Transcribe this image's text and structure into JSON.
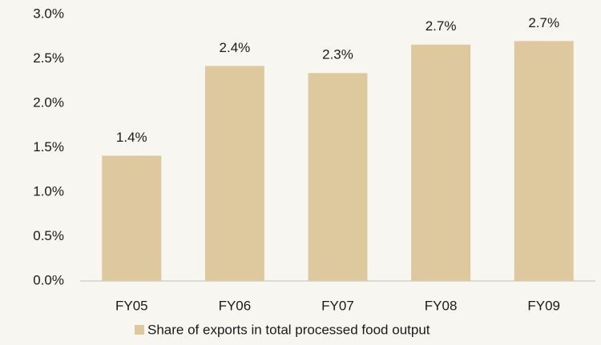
{
  "chart_data": {
    "type": "bar",
    "categories": [
      "FY05",
      "FY06",
      "FY07",
      "FY08",
      "FY09"
    ],
    "series": [
      {
        "name": "Share of exports in total processed food output",
        "color": "#dec99e",
        "values": [
          1.41,
          2.42,
          2.34,
          2.66,
          2.7
        ],
        "value_labels": [
          "1.4%",
          "2.4%",
          "2.3%",
          "2.7%",
          "2.7%"
        ]
      }
    ],
    "ylim": [
      0,
      3
    ],
    "yticks": [
      {
        "value": 0,
        "label": "0.0%"
      },
      {
        "value": 0.5,
        "label": "0.5%"
      },
      {
        "value": 1,
        "label": "1.0%"
      },
      {
        "value": 1.5,
        "label": "1.5%"
      },
      {
        "value": 2,
        "label": "2.0%"
      },
      {
        "value": 2.5,
        "label": "2.5%"
      },
      {
        "value": 3,
        "label": "3.0%"
      }
    ],
    "grid": false,
    "legend": "bottom"
  }
}
